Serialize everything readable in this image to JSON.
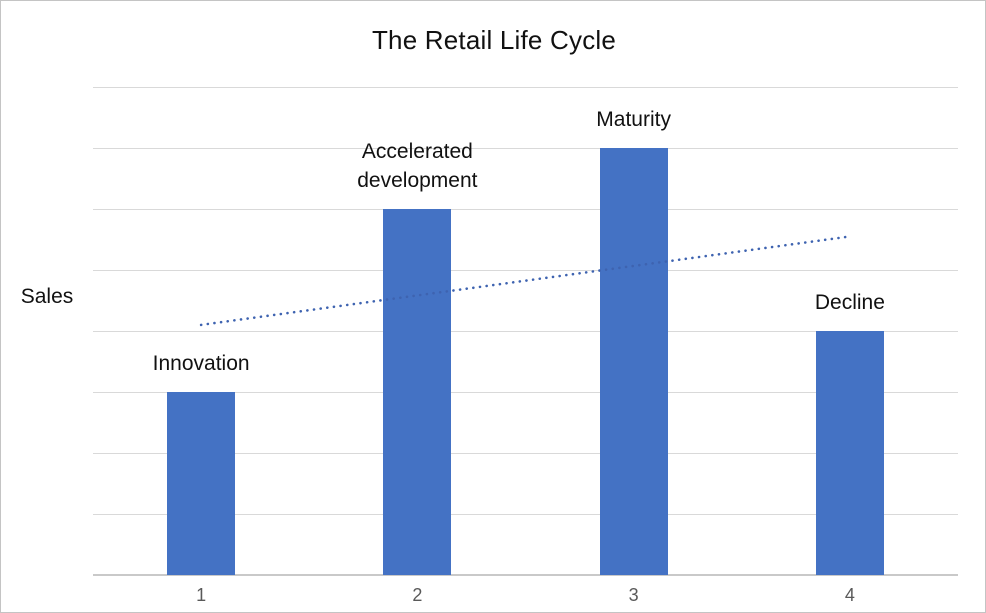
{
  "chart": {
    "title": "The Retail Life Cycle",
    "y_axis_label": "Sales"
  },
  "chart_data": {
    "type": "bar",
    "title": "The Retail Life Cycle",
    "xlabel": "",
    "ylabel": "Sales",
    "categories": [
      "1",
      "2",
      "3",
      "4"
    ],
    "series": [
      {
        "name": "Sales",
        "values": [
          3,
          6,
          7,
          4
        ],
        "point_labels": [
          "Innovation",
          "Accelerated development",
          "Maturity",
          "Decline"
        ]
      }
    ],
    "trendline": {
      "style": "dotted",
      "x": [
        1,
        4
      ],
      "y": [
        4.1,
        5.55
      ]
    },
    "ylim": [
      0,
      8
    ],
    "y_tick_labels_shown": false,
    "gridlines": "horizontal",
    "legend": "none",
    "colors": {
      "bar": "#4472C4",
      "trendline": "#3E63B0",
      "gridline": "#D9D9D9",
      "axis": "#C9C9C9",
      "tick_text": "#595959",
      "label_text": "#111111"
    }
  }
}
